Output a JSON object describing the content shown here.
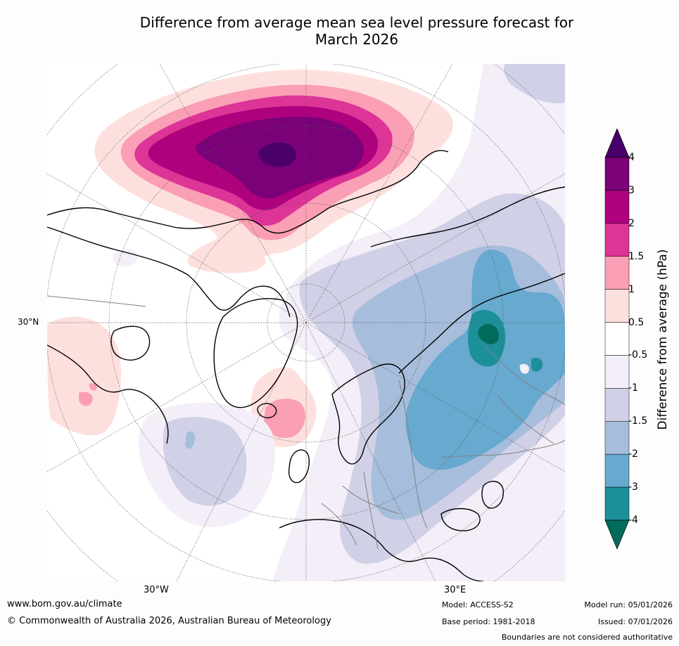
{
  "title_line1": "Difference from average mean sea level pressure forecast for",
  "title_line2": "March 2026",
  "map": {
    "labels": {
      "lat_30n": "30°N",
      "lon_30w": "30°W",
      "lon_30e": "30°E"
    },
    "colors": {
      "ocean": "#ffffff",
      "pos_0_5": "#fde0dd",
      "pos_1": "#fa9fb5",
      "pos_1_5": "#dd3497",
      "pos_2": "#ae017e",
      "pos_3": "#7a0177",
      "pos_4": "#49006a",
      "neg_0_5": "#f3eef7",
      "neg_1": "#d0d1e6",
      "neg_1_5": "#a6bddb",
      "neg_2": "#67a9cf",
      "neg_3": "#1c9099",
      "neg_4": "#016c59",
      "coast": "#000000",
      "border": "#808080",
      "grid": "#555555"
    }
  },
  "colorbar": {
    "label": "Difference from average (hPa)",
    "ticks": [
      "4",
      "3",
      "2",
      "1.5",
      "1",
      "0.5",
      "-0.5",
      "-1",
      "-1.5",
      "-2",
      "-3",
      "-4"
    ],
    "colors": [
      "#7a0177",
      "#ae017e",
      "#dd3497",
      "#fa9fb5",
      "#fde0dd",
      "#ffffff",
      "#f3eef7",
      "#d0d1e6",
      "#a6bddb",
      "#67a9cf",
      "#1c9099"
    ],
    "over_color": "#49006a",
    "under_color": "#016c59"
  },
  "footer": {
    "website": "www.bom.gov.au/climate",
    "copyright": "© Commonwealth of Australia 2026, Australian Bureau of Meteorology",
    "model": "Model: ACCESS-S2",
    "base_period": "Base period: 1981-2018",
    "model_run": "Model run: 05/01/2026",
    "issued": "Issued: 07/01/2026",
    "disclaimer": "Boundaries are not considered authoritative"
  }
}
